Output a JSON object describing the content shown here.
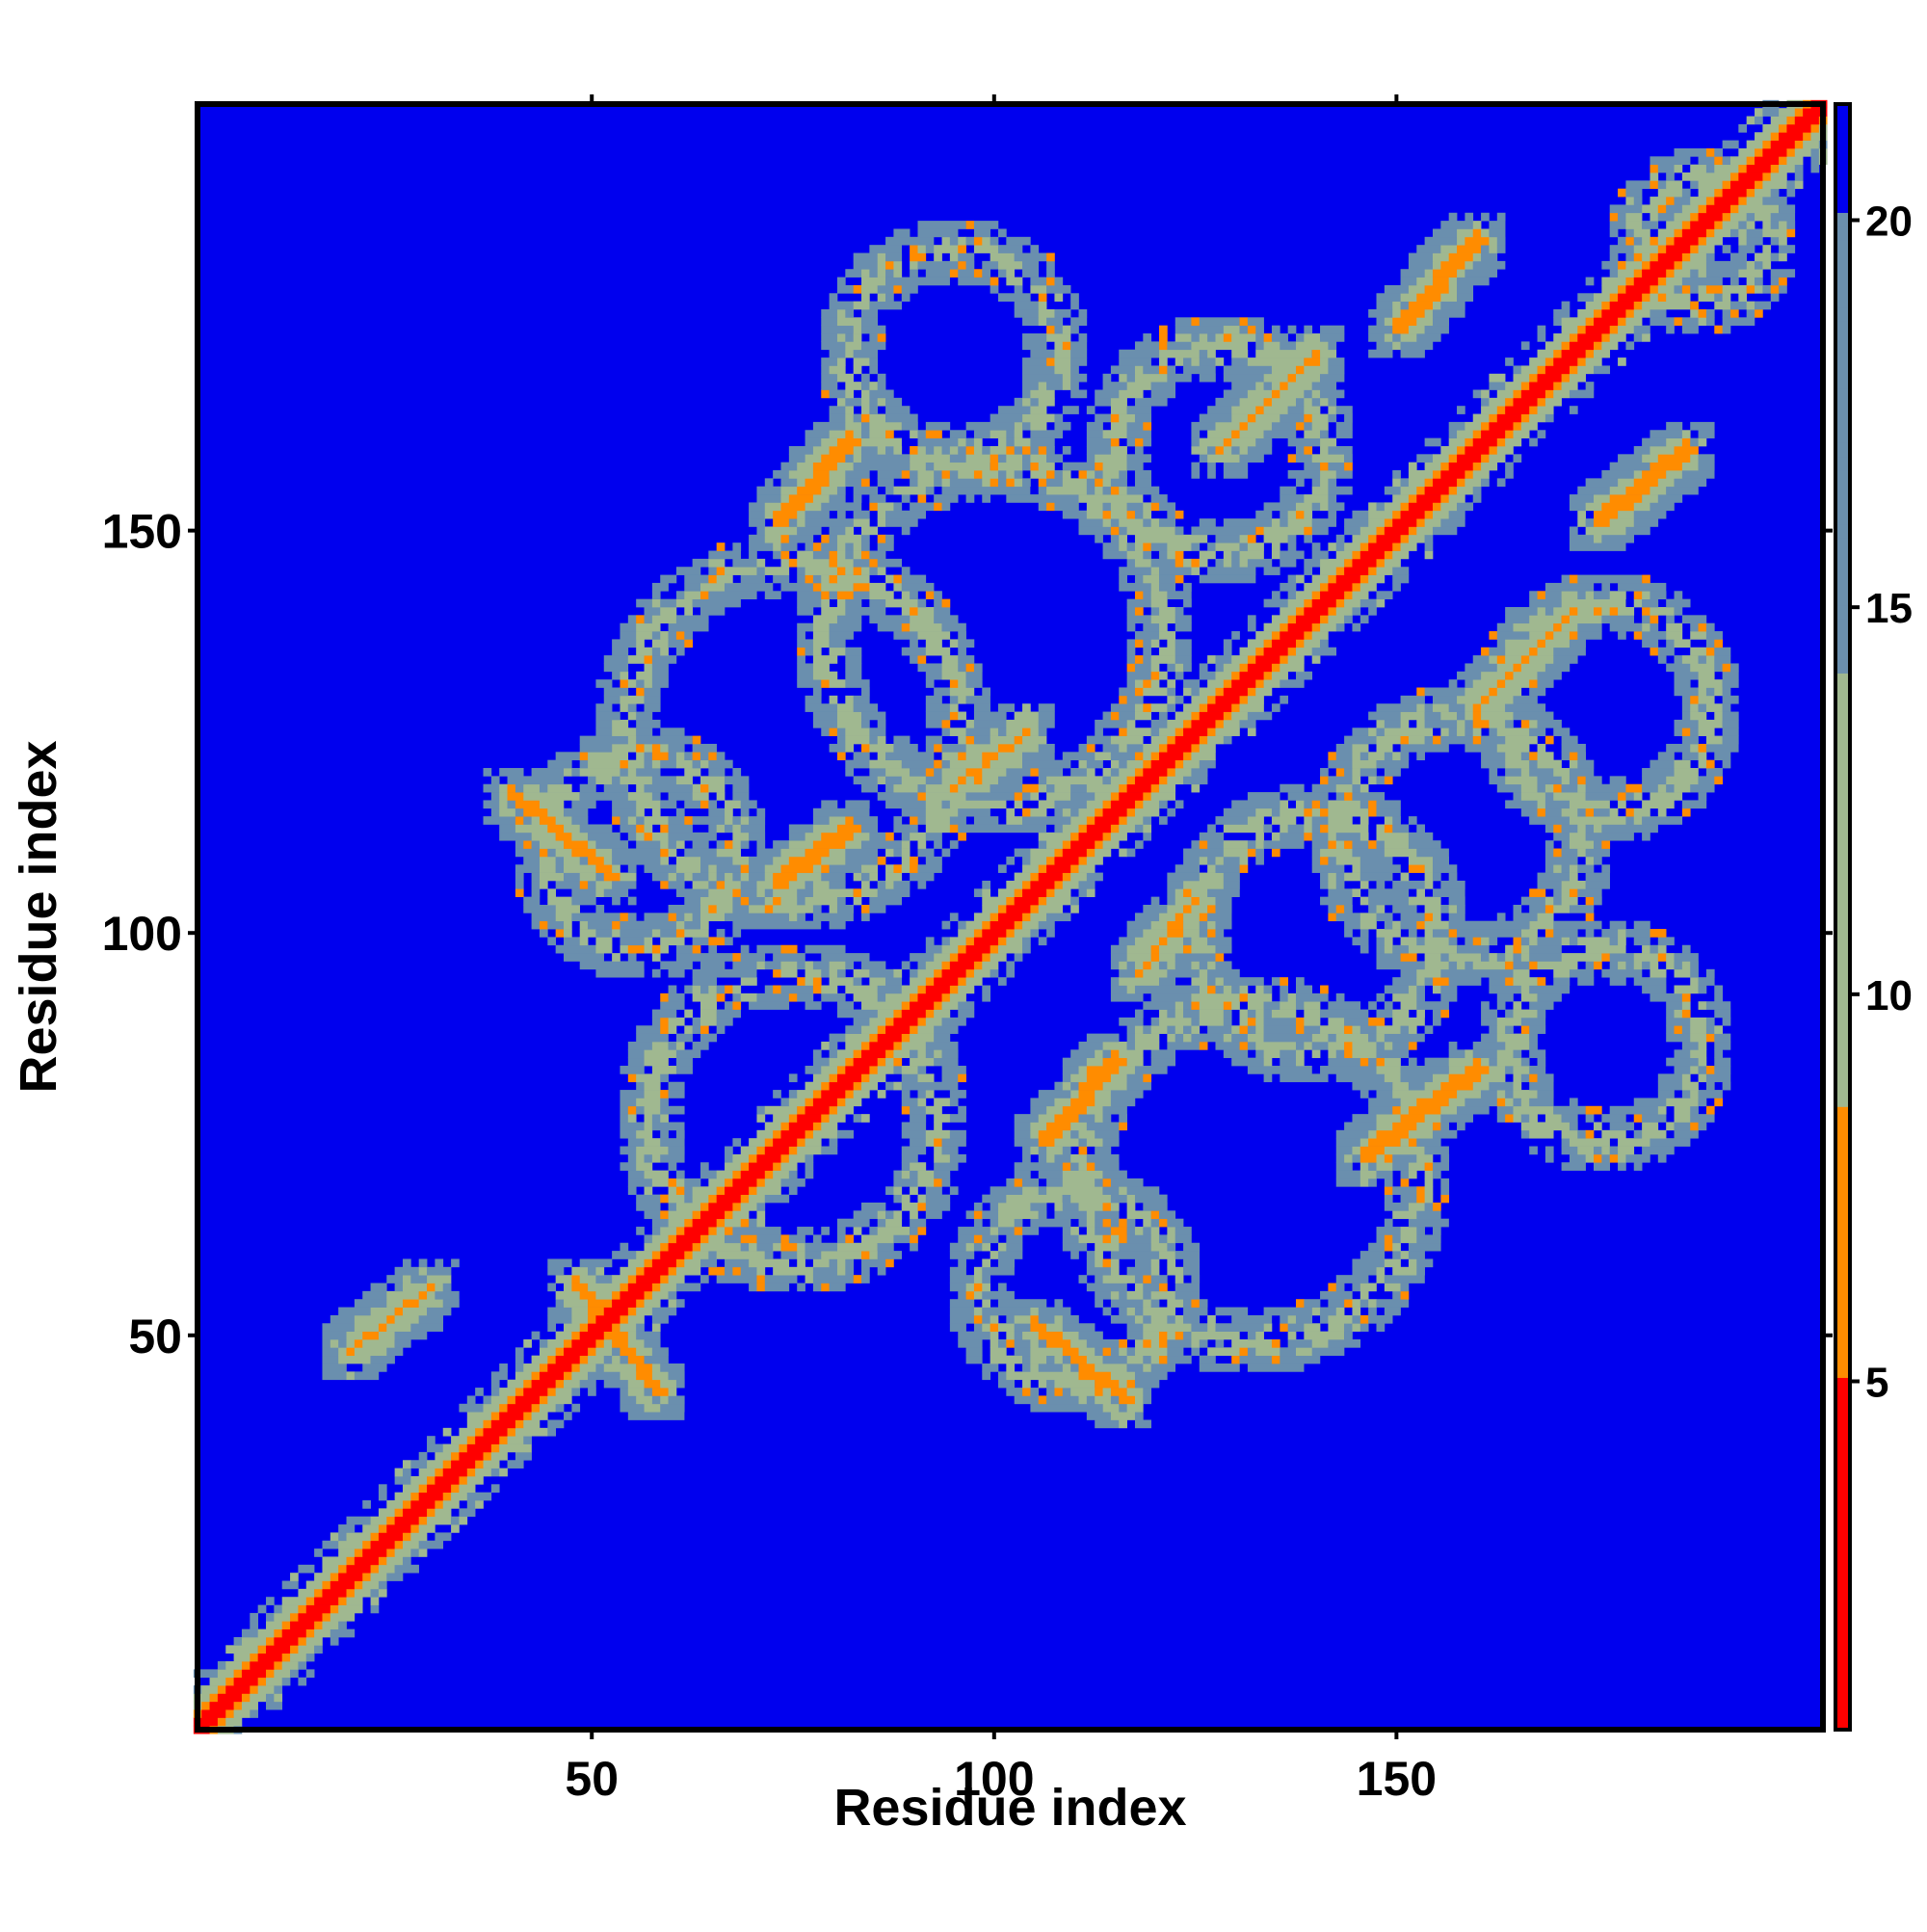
{
  "chart_data": {
    "type": "heatmap",
    "title": "",
    "xlabel": "Residue index",
    "ylabel": "Residue index",
    "n_residues": 203,
    "xlim": [
      1,
      203
    ],
    "ylim": [
      1,
      203
    ],
    "x_ticks": [
      50,
      100,
      150
    ],
    "y_ticks": [
      50,
      100,
      150
    ],
    "colorbar": {
      "ticks": [
        5,
        10,
        15,
        20
      ],
      "range": [
        0.5,
        21.5
      ],
      "colors": {
        "contact": "#ff0000",
        "close": "#ff8c00",
        "near": "#a0b890",
        "mid": "#6a8fae",
        "far": "#0000ee"
      }
    },
    "background_value": 21,
    "diagonal": {
      "from": 1,
      "to": 203,
      "value": 2
    },
    "contacts": [
      {
        "i": [
          40,
          52
        ],
        "j": [
          107,
          117
        ],
        "orient": "anti",
        "value": 6
      },
      {
        "i": [
          48,
          58
        ],
        "j": [
          43,
          56
        ],
        "orient": "anti",
        "value": 6
      },
      {
        "i": [
          105,
          116
        ],
        "j": [
          42,
          51
        ],
        "orient": "anti",
        "value": 6
      },
      {
        "i": [
          73,
          82
        ],
        "j": [
          106,
          113
        ],
        "orient": "parallel",
        "value": 6
      },
      {
        "i": [
          106,
          115
        ],
        "j": [
          74,
          84
        ],
        "orient": "parallel",
        "value": 6
      },
      {
        "i": [
          146,
          160
        ],
        "j": [
          72,
          83
        ],
        "orient": "parallel",
        "value": 6
      },
      {
        "i": [
          73,
          82
        ],
        "j": [
          151,
          161
        ],
        "orient": "parallel",
        "value": 6
      },
      {
        "i": [
          150,
          160
        ],
        "j": [
          175,
          186
        ],
        "orient": "parallel",
        "value": 6
      },
      {
        "i": [
          175,
          186
        ],
        "j": [
          151,
          160
        ],
        "orient": "parallel",
        "value": 6
      },
      {
        "i": [
          128,
          140
        ],
        "j": [
          160,
          172
        ],
        "orient": "parallel",
        "value": 7
      },
      {
        "i": [
          160,
          172
        ],
        "j": [
          128,
          140
        ],
        "orient": "parallel",
        "value": 7
      },
      {
        "i": [
          20,
          30
        ],
        "j": [
          48,
          56
        ],
        "orient": "parallel",
        "value": 7
      },
      {
        "i": [
          95,
          104
        ],
        "j": [
          118,
          125
        ],
        "orient": "parallel",
        "value": 7
      },
      {
        "i": [
          118,
          125
        ],
        "j": [
          95,
          104
        ],
        "orient": "parallel",
        "value": 7
      }
    ],
    "rings": [
      {
        "cx": 75,
        "cy": 77,
        "r": 18
      },
      {
        "cx": 132,
        "cy": 70,
        "r": 21
      },
      {
        "cx": 176,
        "cy": 86,
        "r": 12
      },
      {
        "cx": 100,
        "cy": 137,
        "r": 21
      },
      {
        "cx": 75,
        "cy": 125,
        "r": 21
      },
      {
        "cx": 95,
        "cy": 172,
        "r": 13
      },
      {
        "cx": 128,
        "cy": 160,
        "r": 13
      },
      {
        "cx": 140,
        "cy": 100,
        "r": 15
      },
      {
        "cx": 176,
        "cy": 128,
        "r": 13
      },
      {
        "cx": 158,
        "cy": 112,
        "r": 15
      },
      {
        "cx": 188,
        "cy": 186,
        "r": 8
      },
      {
        "cx": 56,
        "cy": 110,
        "r": 12
      },
      {
        "cx": 110,
        "cy": 56,
        "r": 12
      }
    ]
  }
}
